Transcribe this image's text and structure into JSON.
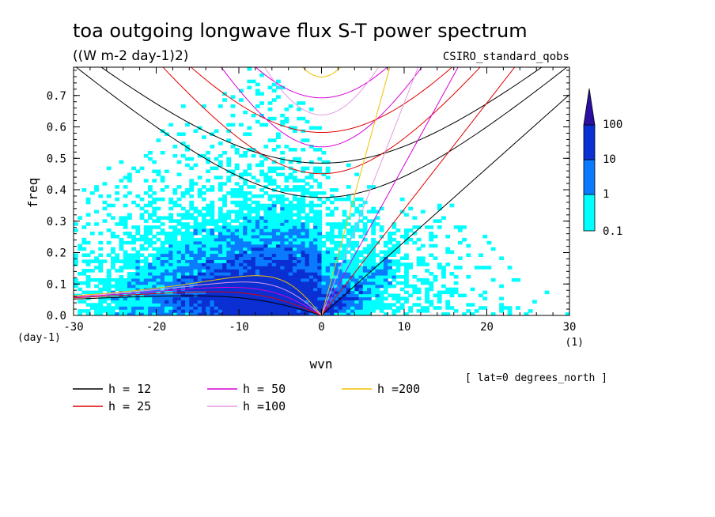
{
  "chart_data": {
    "type": "heatmap",
    "title": "toa outgoing longwave flux S-T power spectrum",
    "subtitle": "((W m-2 day-1)2)",
    "dataset": "CSIRO_standard_qobs",
    "xlabel": "wvn",
    "x_unit": "(1)",
    "ylabel": "freq",
    "y_unit": "(day-1)",
    "annotation": "[ lat=0 degrees_north ]",
    "xlim": [
      -30,
      30
    ],
    "ylim": [
      0,
      0.79
    ],
    "x_ticks": [
      -30,
      -20,
      -10,
      0,
      10,
      20,
      30
    ],
    "y_ticks": [
      0.0,
      0.1,
      0.2,
      0.3,
      0.4,
      0.5,
      0.6,
      0.7
    ],
    "x_tick_labels": [
      "-30",
      "-20",
      "-10",
      "0",
      "10",
      "20",
      "30"
    ],
    "y_tick_labels": [
      "0.0",
      "0.1",
      "0.2",
      "0.3",
      "0.4",
      "0.5",
      "0.6",
      "0.7"
    ],
    "colorbar": {
      "levels": [
        "0.1",
        "1",
        "10",
        "100"
      ],
      "colors": [
        "#00ffff",
        "#0a7aff",
        "#0a2fd2",
        "#2b0fa3"
      ]
    },
    "dispersion_curves": [
      {
        "label": "h = 12",
        "h": 12,
        "color": "#000000"
      },
      {
        "label": "h = 25",
        "h": 25,
        "color": "#e00000"
      },
      {
        "label": "h = 50",
        "h": 50,
        "color": "#d800d8"
      },
      {
        "label": "h =100",
        "h": 100,
        "color": "#e49ae4"
      },
      {
        "label": "h =200",
        "h": 200,
        "color": "#f0c000"
      }
    ],
    "grid": false
  }
}
